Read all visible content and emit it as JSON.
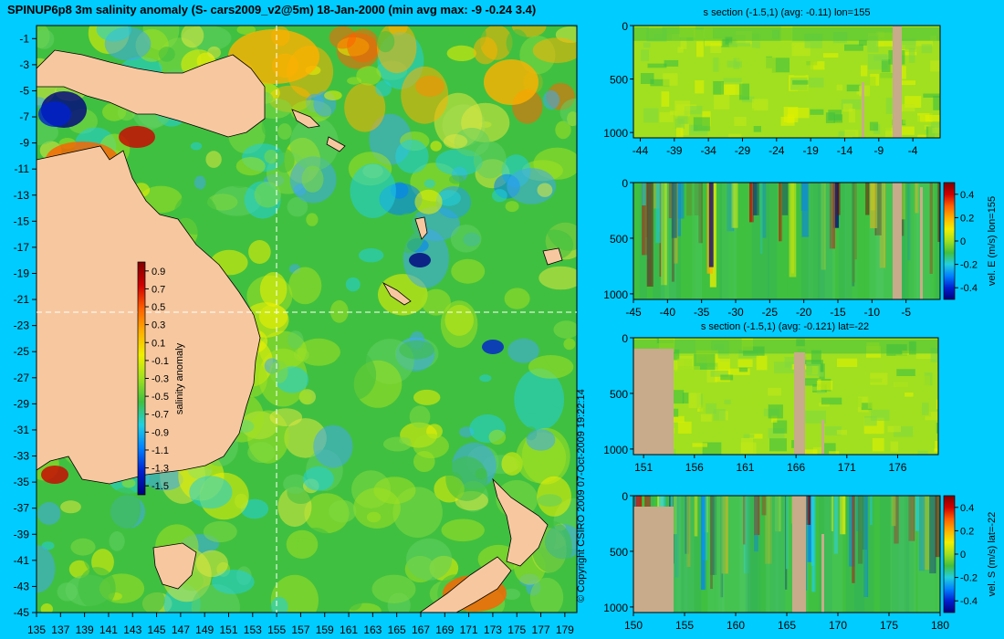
{
  "page": {
    "title": "SPINUP6p8 3m salinity anomaly (S- cars2009_v2@5m) 18-Jan-2000 (min avg max: -9 -0.24 3.4)",
    "copyright": "© Copyright CSIRO 2009   07-Oct-2009 19:22:14"
  },
  "colors": {
    "background": "#00ccff",
    "land": "#f7c8a0",
    "section_land": "#c8ab8a",
    "colormap": [
      "#00007f",
      "#0020d0",
      "#0080ff",
      "#20d0e0",
      "#40c040",
      "#a0e020",
      "#f0f000",
      "#ffb000",
      "#ff6000",
      "#d00000",
      "#7f0000"
    ]
  },
  "chart_data": [
    {
      "type": "heatmap",
      "name": "map",
      "xticks": [
        "135",
        "137",
        "139",
        "141",
        "143",
        "145",
        "147",
        "149",
        "151",
        "153",
        "155",
        "157",
        "159",
        "161",
        "163",
        "165",
        "167",
        "169",
        "171",
        "173",
        "175",
        "177",
        "179"
      ],
      "yticks": [
        "-1",
        "-3",
        "-5",
        "-7",
        "-9",
        "-11",
        "-13",
        "-15",
        "-17",
        "-19",
        "-21",
        "-23",
        "-25",
        "-27",
        "-29",
        "-31",
        "-33",
        "-35",
        "-37",
        "-39",
        "-41",
        "-43",
        "-45"
      ],
      "xlim": [
        135,
        180
      ],
      "ylim": [
        -45,
        0
      ],
      "crosshair": {
        "lon": 155,
        "lat": -22
      },
      "colorbar": {
        "label": "salinity anomaly",
        "ticks": [
          "0.9",
          "0.7",
          "0.5",
          "0.3",
          "0.1",
          "-0.1",
          "-0.3",
          "-0.5",
          "-0.7",
          "-0.9",
          "-1.1",
          "-1.3",
          "-1.5"
        ],
        "range": [
          -1.6,
          1.0
        ]
      }
    },
    {
      "type": "heatmap",
      "name": "section-1",
      "title": "s section (-1.5,1) (avg: -0.11) lon=155",
      "xticks": [
        "-44",
        "-39",
        "-34",
        "-29",
        "-24",
        "-19",
        "-14",
        "-9",
        "-4"
      ],
      "yticks": [
        "0",
        "500",
        "1000"
      ],
      "xlim": [
        -45,
        0
      ],
      "ylim": [
        1050,
        0
      ]
    },
    {
      "type": "heatmap",
      "name": "section-2",
      "title": "",
      "xticks": [
        "-45",
        "-40",
        "-35",
        "-30",
        "-25",
        "-20",
        "-15",
        "-10",
        "-5"
      ],
      "yticks": [
        "0",
        "500",
        "1000"
      ],
      "xlim": [
        -45,
        0
      ],
      "ylim": [
        1050,
        0
      ],
      "colorbar": {
        "label": "vel. E (m/s) lon=155",
        "ticks": [
          "0.4",
          "0.2",
          "0",
          "-0.2",
          "-0.4"
        ],
        "range": [
          -0.5,
          0.5
        ]
      }
    },
    {
      "type": "heatmap",
      "name": "section-3",
      "title": "s section (-1.5,1) (avg: -0.121) lat=-22",
      "xticks": [
        "151",
        "156",
        "161",
        "166",
        "171",
        "176"
      ],
      "yticks": [
        "0",
        "500",
        "1000"
      ],
      "xlim": [
        150,
        180
      ],
      "ylim": [
        1050,
        0
      ]
    },
    {
      "type": "heatmap",
      "name": "section-4",
      "title": "",
      "xticks": [
        "150",
        "155",
        "160",
        "165",
        "170",
        "175",
        "180"
      ],
      "yticks": [
        "0",
        "500",
        "1000"
      ],
      "xlim": [
        150,
        180
      ],
      "ylim": [
        1050,
        0
      ],
      "colorbar": {
        "label": "vel. S (m/s) lat=-22",
        "ticks": [
          "0.4",
          "0.2",
          "0",
          "-0.2",
          "-0.4"
        ],
        "range": [
          -0.5,
          0.5
        ]
      }
    }
  ]
}
